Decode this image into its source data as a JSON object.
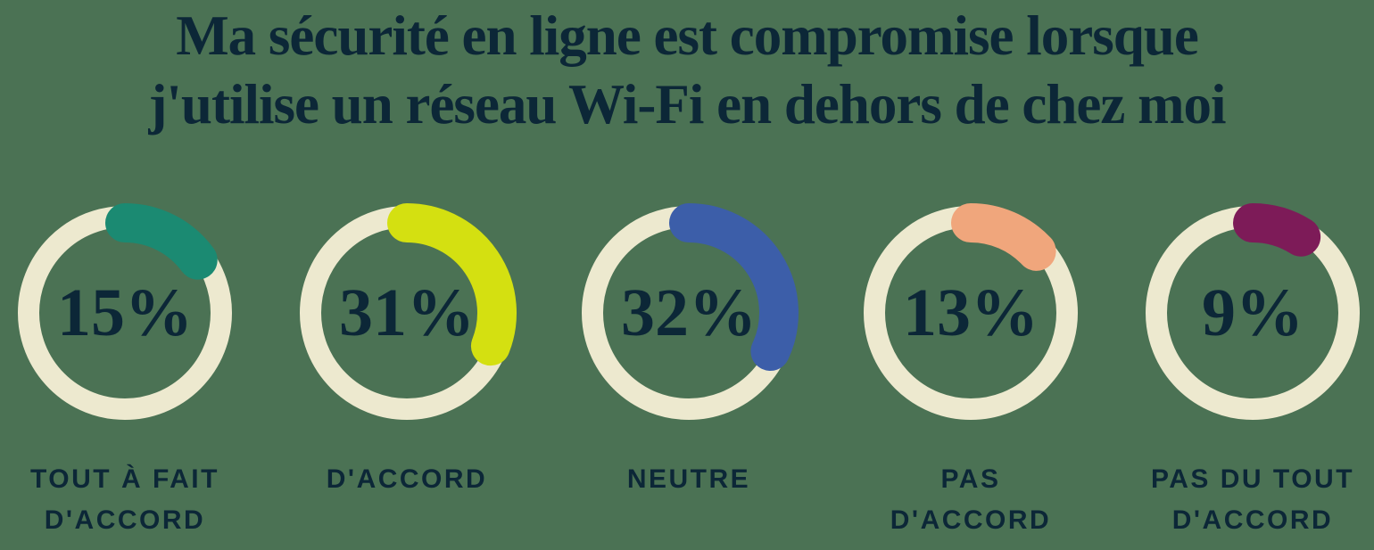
{
  "title": {
    "line1": "Ma sécurité en ligne est compromise lorsque",
    "line2": "j'utilise un réseau Wi-Fi en dehors de chez moi"
  },
  "colors": {
    "background": "#4B7254",
    "text_navy": "#0C2737",
    "ring_track": "#EDE9CF"
  },
  "chart_data": {
    "type": "pie",
    "variant": "donut-gauge-row",
    "title": "Ma sécurité en ligne est compromise lorsque j'utilise un réseau Wi-Fi en dehors de chez moi",
    "unit": "%",
    "legend_position": "below-each-donut",
    "categories": [
      "Tout à fait d'accord",
      "D'accord",
      "Neutre",
      "Pas d'accord",
      "Pas du tout d'accord"
    ],
    "values": [
      15,
      31,
      32,
      13,
      9
    ],
    "items": [
      {
        "value": 15,
        "display": "15%",
        "color": "#1B8A72",
        "label_lines": [
          "TOUT À FAIT",
          "D'ACCORD"
        ]
      },
      {
        "value": 31,
        "display": "31%",
        "color": "#D4E011",
        "label_lines": [
          "D'ACCORD"
        ]
      },
      {
        "value": 32,
        "display": "32%",
        "color": "#3C5EA9",
        "label_lines": [
          "NEUTRE"
        ]
      },
      {
        "value": 13,
        "display": "13%",
        "color": "#F0A67C",
        "label_lines": [
          "PAS",
          "D'ACCORD"
        ]
      },
      {
        "value": 9,
        "display": "9%",
        "color": "#7D1B58",
        "label_lines": [
          "PAS DU TOUT",
          "D'ACCORD"
        ]
      }
    ]
  }
}
